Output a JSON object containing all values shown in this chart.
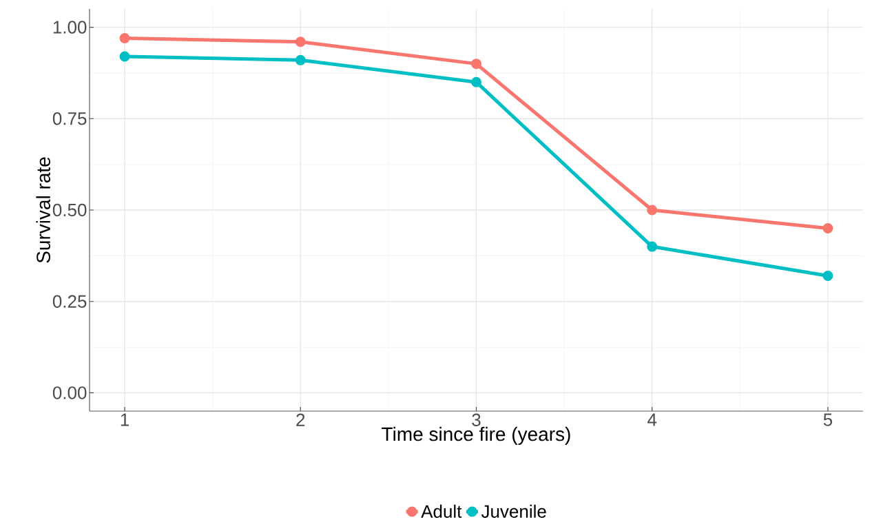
{
  "chart_data": {
    "type": "line",
    "xlabel": "Time since fire (years)",
    "ylabel": "Survival rate",
    "x": [
      1,
      2,
      3,
      4,
      5
    ],
    "series": [
      {
        "name": "Adult",
        "color": "#f8766d",
        "values": [
          0.97,
          0.96,
          0.9,
          0.5,
          0.45
        ]
      },
      {
        "name": "Juvenile",
        "color": "#00bfc4",
        "values": [
          0.92,
          0.91,
          0.85,
          0.4,
          0.32
        ]
      }
    ],
    "xlim": [
      0.8,
      5.2
    ],
    "ylim": [
      -0.05,
      1.05
    ],
    "xticks": [
      1,
      2,
      3,
      4,
      5
    ],
    "yticks": [
      {
        "value": 0,
        "label": "0.00"
      },
      {
        "value": 0.25,
        "label": "0.25"
      },
      {
        "value": 0.5,
        "label": "0.50"
      },
      {
        "value": 0.75,
        "label": "0.75"
      },
      {
        "value": 1,
        "label": "1.00"
      }
    ],
    "grid": true,
    "legend": "bottom",
    "marker": "circle",
    "line_style": "solid"
  }
}
